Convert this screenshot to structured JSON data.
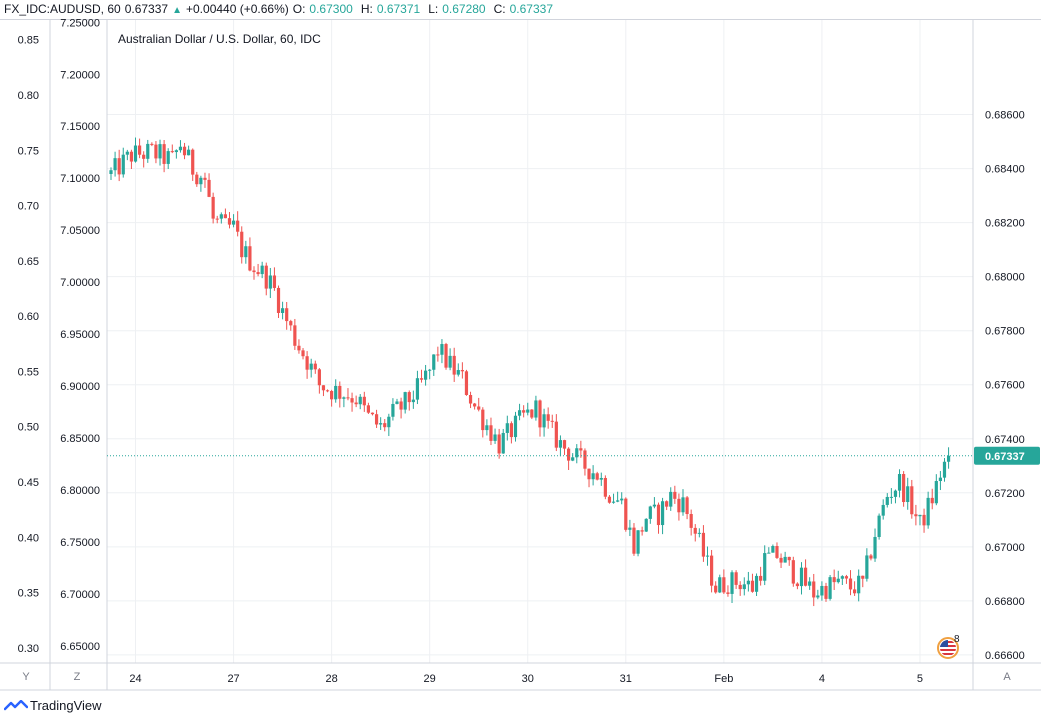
{
  "header": {
    "symbol": "FX_IDC:AUDUSD, 60",
    "last": "0.67337",
    "change": "+0.00440 (+0.66%)",
    "o_label": "O:",
    "o_value": "0.67300",
    "h_label": "H:",
    "h_value": "0.67371",
    "l_label": "L:",
    "l_value": "0.67280",
    "c_label": "C:",
    "c_value": "0.67337",
    "up_arrow": "▲"
  },
  "colors": {
    "up": "#26a69a",
    "down": "#ef5350",
    "grid": "#eef0f3",
    "axis_border": "#d1d4dc",
    "price_line": "#26a69a"
  },
  "corner_buttons": {
    "y": "Y",
    "z": "Z",
    "a": "A"
  },
  "events": {
    "count": "8",
    "icon": "us-flag-icon"
  },
  "footer": {
    "brand": "TradingView",
    "icon": "tradingview-logo-icon"
  },
  "chart_data": {
    "type": "candlestick",
    "title": "Australian Dollar / U.S. Dollar, 60, IDC",
    "price_scale_right": {
      "ticks": [
        "0.68600",
        "0.68400",
        "0.68200",
        "0.68000",
        "0.67800",
        "0.67600",
        "0.67400",
        "0.67200",
        "0.67000",
        "0.66800",
        "0.66600"
      ],
      "range": [
        0.6657,
        0.6895
      ]
    },
    "scale_left_outer": {
      "ticks": [
        "0.85",
        "0.80",
        "0.75",
        "0.70",
        "0.65",
        "0.60",
        "0.55",
        "0.50",
        "0.45",
        "0.40",
        "0.35",
        "0.30"
      ],
      "range": [
        0.2863,
        0.8678
      ]
    },
    "scale_left_inner": {
      "ticks": [
        "7.25000",
        "7.20000",
        "7.15000",
        "7.10000",
        "7.05000",
        "7.00000",
        "6.95000",
        "6.90000",
        "6.85000",
        "6.80000",
        "6.75000",
        "6.70000",
        "6.65000"
      ],
      "range": [
        6.6337,
        7.2522
      ]
    },
    "x_axis": {
      "labels": [
        "24",
        "27",
        "28",
        "29",
        "30",
        "31",
        "Feb",
        "4",
        "5"
      ],
      "label_bar_index": [
        6,
        30,
        54,
        78,
        102,
        126,
        150,
        174,
        198
      ]
    },
    "last_price": "0.67337",
    "last_price_value": 0.67337,
    "anchors": [
      [
        0,
        0.6838
      ],
      [
        5,
        0.6845
      ],
      [
        10,
        0.6846
      ],
      [
        15,
        0.6843
      ],
      [
        17,
        0.6849
      ],
      [
        20,
        0.684
      ],
      [
        23,
        0.6836
      ],
      [
        25,
        0.6821
      ],
      [
        28,
        0.6818
      ],
      [
        30,
        0.6818
      ],
      [
        32,
        0.681
      ],
      [
        35,
        0.6804
      ],
      [
        38,
        0.68
      ],
      [
        40,
        0.6795
      ],
      [
        42,
        0.6787
      ],
      [
        45,
        0.6777
      ],
      [
        48,
        0.6769
      ],
      [
        51,
        0.676
      ],
      [
        54,
        0.6758
      ],
      [
        57,
        0.6757
      ],
      [
        60,
        0.6755
      ],
      [
        63,
        0.6748
      ],
      [
        66,
        0.6744
      ],
      [
        69,
        0.6749
      ],
      [
        72,
        0.6753
      ],
      [
        75,
        0.6758
      ],
      [
        78,
        0.6765
      ],
      [
        80,
        0.6773
      ],
      [
        83,
        0.6767
      ],
      [
        86,
        0.6762
      ],
      [
        89,
        0.6752
      ],
      [
        92,
        0.6745
      ],
      [
        95,
        0.6738
      ],
      [
        98,
        0.6743
      ],
      [
        101,
        0.6748
      ],
      [
        104,
        0.6751
      ],
      [
        107,
        0.6744
      ],
      [
        110,
        0.6738
      ],
      [
        113,
        0.6734
      ],
      [
        116,
        0.673
      ],
      [
        119,
        0.6727
      ],
      [
        122,
        0.672
      ],
      [
        125,
        0.6716
      ],
      [
        128,
        0.67
      ],
      [
        131,
        0.6711
      ],
      [
        134,
        0.6712
      ],
      [
        137,
        0.6719
      ],
      [
        140,
        0.6716
      ],
      [
        143,
        0.6705
      ],
      [
        145,
        0.6697
      ],
      [
        148,
        0.6685
      ],
      [
        151,
        0.6687
      ],
      [
        154,
        0.6687
      ],
      [
        157,
        0.6685
      ],
      [
        160,
        0.6695
      ],
      [
        163,
        0.6697
      ],
      [
        166,
        0.6692
      ],
      [
        169,
        0.6688
      ],
      [
        172,
        0.6683
      ],
      [
        175,
        0.6685
      ],
      [
        178,
        0.6687
      ],
      [
        181,
        0.6685
      ],
      [
        184,
        0.6686
      ],
      [
        187,
        0.6705
      ],
      [
        190,
        0.6719
      ],
      [
        193,
        0.6724
      ],
      [
        196,
        0.6715
      ],
      [
        198,
        0.6708
      ],
      [
        201,
        0.6718
      ],
      [
        203,
        0.6727
      ],
      [
        205,
        0.67337
      ]
    ]
  }
}
